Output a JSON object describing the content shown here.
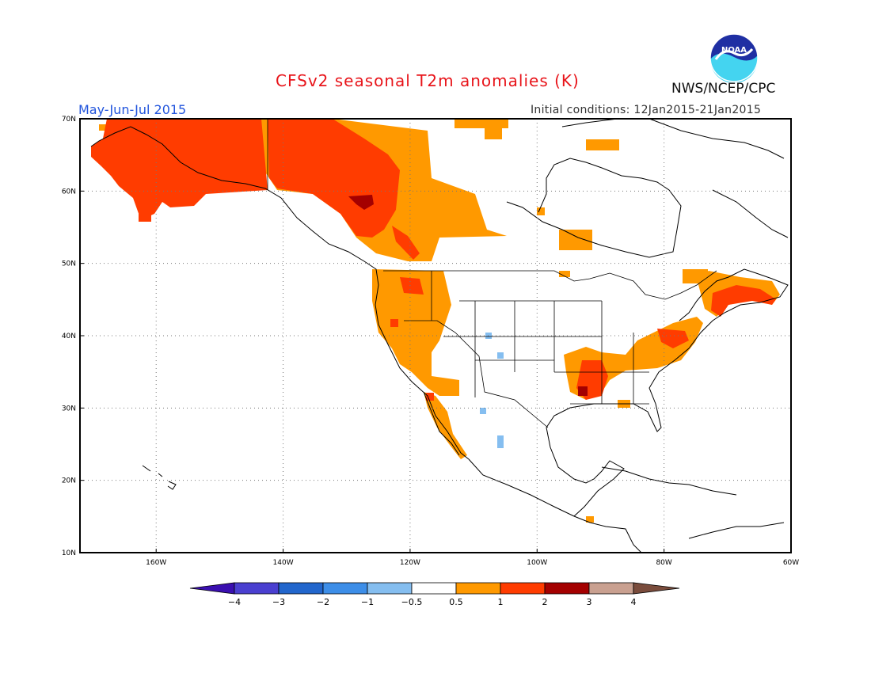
{
  "header": {
    "title": "CFSv2 seasonal T2m anomalies (K)",
    "period": "May-Jun-Jul 2015",
    "initial_conditions": "Initial conditions: 12Jan2015-21Jan2015",
    "agency": "NWS/NCEP/CPC",
    "logo_text": "NOAA"
  },
  "map": {
    "region": "North America",
    "lon_range": [
      -172,
      -60
    ],
    "lat_range": [
      10,
      70
    ],
    "lat_labels": [
      "10N",
      "20N",
      "30N",
      "40N",
      "50N",
      "60N",
      "70N"
    ],
    "lon_labels": [
      "160W",
      "140W",
      "120W",
      "100W",
      "80W",
      "60W"
    ],
    "gridlines": true,
    "anomaly_regions": [
      {
        "area": "Alaska",
        "category": "1 to 2"
      },
      {
        "area": "Yukon / northern British Columbia",
        "category": "1 to 2"
      },
      {
        "area": "Northern British Columbia",
        "category": "2 to 3"
      },
      {
        "area": "Western Canada / Northwest Territories",
        "category": "0.5 to 1"
      },
      {
        "area": "US Pacific Northwest",
        "category": "0.5 to 1"
      },
      {
        "area": "California / Great Basin / Southwest",
        "category": "0.5 to 1"
      },
      {
        "area": "Baja California",
        "category": "0.5 to 1"
      },
      {
        "area": "Lower Mississippi Valley / Southeast",
        "category": "0.5 to 1"
      },
      {
        "area": "Mid-Atlantic / Northeast US",
        "category": "0.5 to 1"
      },
      {
        "area": "Maritimes / New England",
        "category": "1 to 2"
      },
      {
        "area": "Colorado / New Mexico / Mexico (isolated)",
        "category": "-1 to -0.5"
      }
    ]
  },
  "colorbar": {
    "tick_labels": [
      "-4",
      "-3",
      "-2",
      "-1",
      "-0.5",
      "0.5",
      "1",
      "2",
      "3",
      "4"
    ],
    "colors": [
      "#3a0fb0",
      "#4a3fd0",
      "#2266cc",
      "#3d8ee8",
      "#85bef0",
      "#ffffff",
      "#ff9900",
      "#ff3c00",
      "#a40000",
      "#c9a090",
      "#7a4c3c"
    ]
  }
}
